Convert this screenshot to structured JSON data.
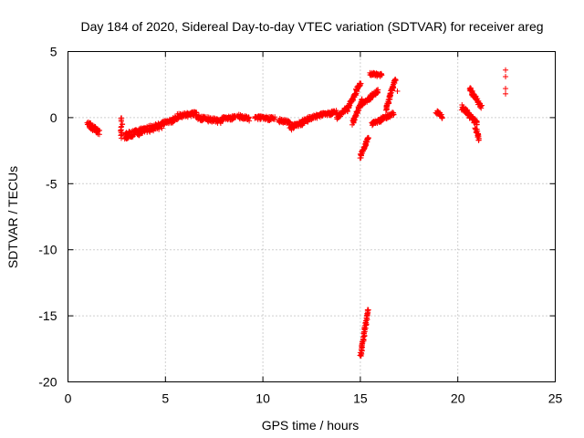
{
  "chart_data": {
    "type": "scatter",
    "title": "Day 184 of 2020, Sidereal Day-to-day VTEC variation (SDTVAR) for receiver areg",
    "xlabel": "GPS time / hours",
    "ylabel": "SDTVAR / TECUs",
    "xlim": [
      0,
      25
    ],
    "ylim": [
      -20,
      5
    ],
    "xticks": [
      0,
      5,
      10,
      15,
      20,
      25
    ],
    "yticks": [
      5,
      0,
      -5,
      -10,
      -15,
      -20
    ],
    "grid": true,
    "marker": "+",
    "marker_color": "#ff0000",
    "series": [
      {
        "name": "SDTVAR",
        "segments": [
          {
            "x": [
              1.0,
              1.6
            ],
            "y": [
              -0.5,
              -1.1
            ],
            "spread": 0.45
          },
          {
            "x": [
              2.75,
              2.75
            ],
            "y": [
              0.0,
              -1.5
            ],
            "spread": 0.15
          },
          {
            "x": [
              2.9,
              4.8
            ],
            "y": [
              -1.4,
              -0.6
            ],
            "spread": 0.5
          },
          {
            "x": [
              4.8,
              5.6
            ],
            "y": [
              -0.5,
              -0.1
            ],
            "spread": 0.35
          },
          {
            "x": [
              5.6,
              6.6
            ],
            "y": [
              0.1,
              0.3
            ],
            "spread": 0.35
          },
          {
            "x": [
              6.6,
              7.9
            ],
            "y": [
              0.0,
              -0.3
            ],
            "spread": 0.35
          },
          {
            "x": [
              7.9,
              8.6
            ],
            "y": [
              -0.1,
              0.0
            ],
            "spread": 0.3
          },
          {
            "x": [
              8.7,
              9.3
            ],
            "y": [
              0.1,
              -0.1
            ],
            "spread": 0.3
          },
          {
            "x": [
              9.6,
              10.6
            ],
            "y": [
              0.0,
              -0.1
            ],
            "spread": 0.3
          },
          {
            "x": [
              10.8,
              11.4
            ],
            "y": [
              -0.2,
              -0.4
            ],
            "spread": 0.3
          },
          {
            "x": [
              11.4,
              12.3
            ],
            "y": [
              -0.8,
              -0.2
            ],
            "spread": 0.4
          },
          {
            "x": [
              12.3,
              13.0
            ],
            "y": [
              -0.1,
              0.2
            ],
            "spread": 0.3
          },
          {
            "x": [
              13.0,
              13.8
            ],
            "y": [
              0.2,
              0.4
            ],
            "spread": 0.3
          },
          {
            "x": [
              13.8,
              14.3
            ],
            "y": [
              0.0,
              0.7
            ],
            "spread": 0.3
          },
          {
            "x": [
              14.3,
              15.0
            ],
            "y": [
              0.5,
              2.6
            ],
            "spread": 0.3
          },
          {
            "x": [
              14.6,
              15.1
            ],
            "y": [
              -0.4,
              1.3
            ],
            "spread": 0.3
          },
          {
            "x": [
              15.1,
              15.9
            ],
            "y": [
              1.0,
              2.0
            ],
            "spread": 0.3
          },
          {
            "x": [
              15.5,
              16.1
            ],
            "y": [
              3.3,
              3.2
            ],
            "spread": 0.25
          },
          {
            "x": [
              15.6,
              16.7
            ],
            "y": [
              -0.5,
              0.3
            ],
            "spread": 0.3
          },
          {
            "x": [
              16.3,
              16.8
            ],
            "y": [
              0.5,
              3.0
            ],
            "spread": 0.3
          },
          {
            "x": [
              15.0,
              15.4
            ],
            "y": [
              -3.0,
              -1.5
            ],
            "spread": 0.2
          },
          {
            "x": [
              15.0,
              15.4
            ],
            "y": [
              -18.1,
              -14.5
            ],
            "spread": 0.15
          },
          {
            "x": [
              18.9,
              19.2
            ],
            "y": [
              0.5,
              0.0
            ],
            "spread": 0.3
          },
          {
            "x": [
              20.2,
              21.0
            ],
            "y": [
              0.8,
              -0.5
            ],
            "spread": 0.4
          },
          {
            "x": [
              20.6,
              21.2
            ],
            "y": [
              2.2,
              0.8
            ],
            "spread": 0.3
          },
          {
            "x": [
              20.9,
              21.1
            ],
            "y": [
              -0.8,
              -1.7
            ],
            "spread": 0.3
          }
        ],
        "points": [
          {
            "x": 16.9,
            "y": 2.0
          },
          {
            "x": 22.45,
            "y": 3.6
          },
          {
            "x": 22.45,
            "y": 3.1
          },
          {
            "x": 22.45,
            "y": 2.2
          },
          {
            "x": 22.45,
            "y": 1.8
          },
          {
            "x": 2.7,
            "y": -1.0
          },
          {
            "x": 3.0,
            "y": -1.6
          }
        ]
      }
    ]
  }
}
